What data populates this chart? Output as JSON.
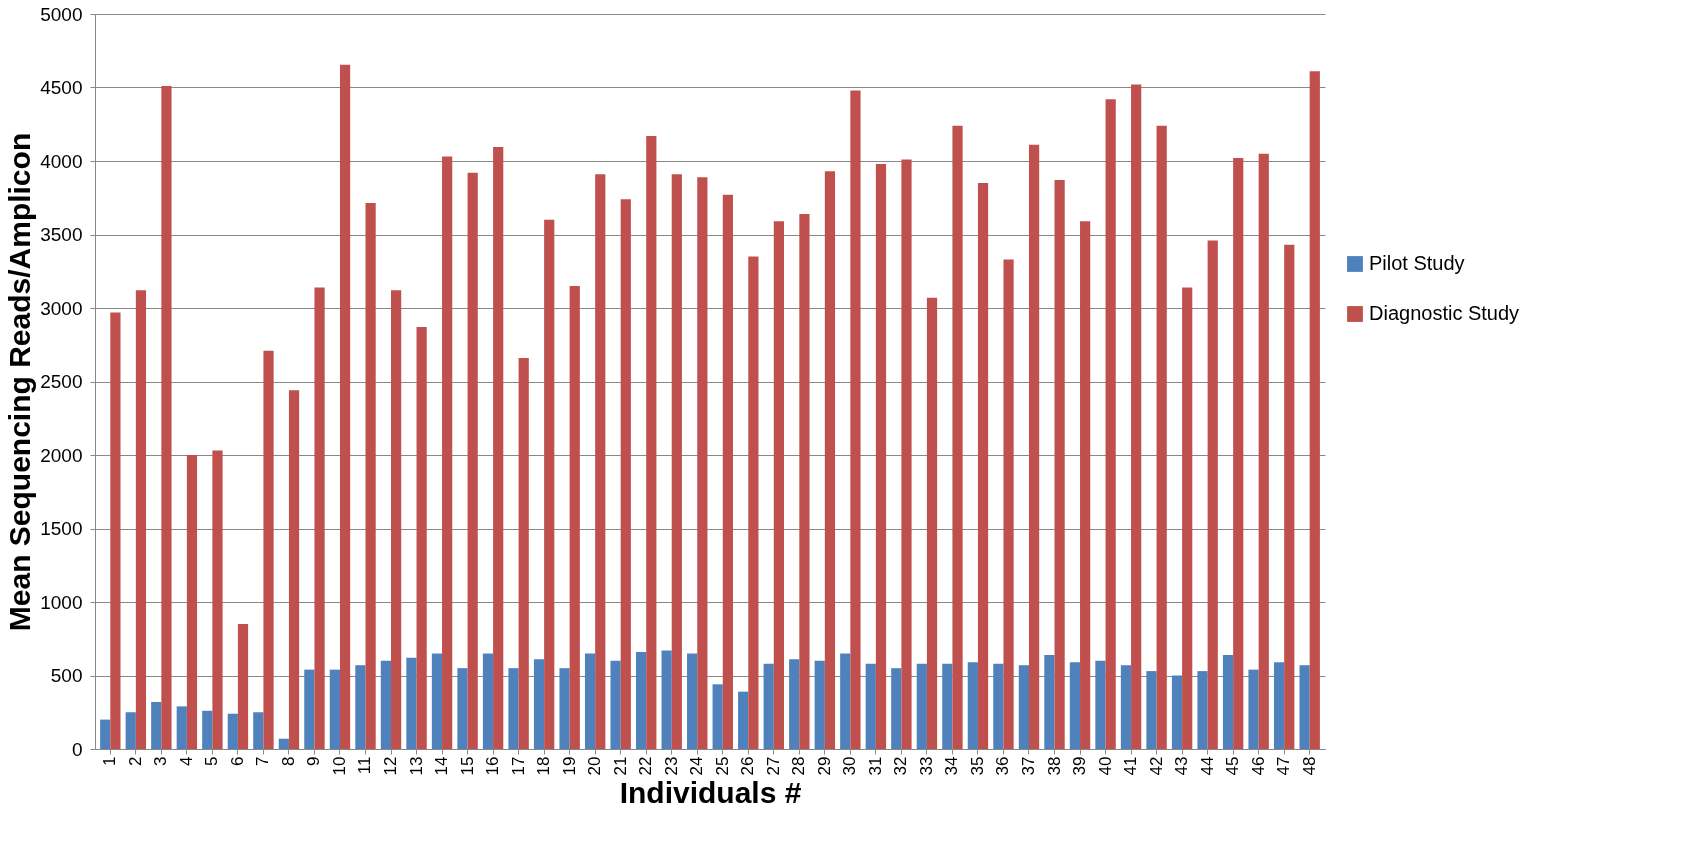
{
  "chart_data": {
    "type": "bar",
    "xlabel": "Individuals #",
    "ylabel": "Mean Sequencing Reads/Amplicon",
    "categories": [
      "1",
      "2",
      "3",
      "4",
      "5",
      "6",
      "7",
      "8",
      "9",
      "10",
      "11",
      "12",
      "13",
      "14",
      "15",
      "16",
      "17",
      "18",
      "19",
      "20",
      "21",
      "22",
      "23",
      "24",
      "25",
      "26",
      "27",
      "28",
      "29",
      "30",
      "31",
      "32",
      "33",
      "34",
      "35",
      "36",
      "37",
      "38",
      "39",
      "40",
      "41",
      "42",
      "43",
      "44",
      "45",
      "46",
      "47",
      "48"
    ],
    "series": [
      {
        "name": "Pilot Study",
        "color": "#4f81bd",
        "values": [
          200,
          250,
          320,
          290,
          260,
          240,
          250,
          70,
          540,
          540,
          570,
          600,
          620,
          650,
          550,
          650,
          550,
          610,
          550,
          650,
          600,
          660,
          670,
          650,
          440,
          390,
          580,
          610,
          600,
          650,
          580,
          550,
          580,
          580,
          590,
          580,
          570,
          640,
          590,
          600,
          570,
          530,
          500,
          530,
          640,
          540,
          590,
          570
        ]
      },
      {
        "name": "Diagnostic Study",
        "color": "#c0504d",
        "values": [
          2970,
          3120,
          4510,
          2000,
          2030,
          850,
          2710,
          2440,
          3140,
          4655,
          3715,
          3120,
          2870,
          4030,
          3920,
          4095,
          2660,
          3600,
          3150,
          3910,
          3740,
          4170,
          3910,
          3890,
          3770,
          3350,
          3590,
          3640,
          3930,
          4480,
          3980,
          4010,
          3070,
          4240,
          3850,
          3330,
          4110,
          3870,
          3590,
          4420,
          4520,
          4240,
          3140,
          3460,
          4020,
          4050,
          3430,
          4610
        ]
      }
    ],
    "ylim": [
      0,
      5000
    ],
    "yticks": [
      0,
      500,
      1000,
      1500,
      2000,
      2500,
      3000,
      3500,
      4000,
      4500,
      5000
    ],
    "grid": "y",
    "legend": "right"
  }
}
